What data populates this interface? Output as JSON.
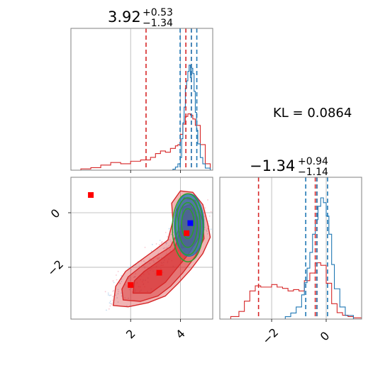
{
  "chart_data": {
    "type": "corner-plot",
    "kl_text": "KL = 0.0864",
    "colors": {
      "posterior_a": "#1f77b4",
      "posterior_b": "#d62728",
      "contour_c": "#2ca02c",
      "truth_marker": "#0000ff",
      "sample_marker": "#ff0000",
      "grid": "#b0b0b0",
      "frame": "#808080"
    },
    "params": [
      {
        "title_value": "3.92",
        "title_plus": "+0.53",
        "title_minus": "−1.34",
        "range": [
          -0.4,
          5.3
        ],
        "ticks": [
          {
            "value": 2,
            "label": "2"
          },
          {
            "value": 4,
            "label": "4"
          }
        ],
        "blue_quantiles": [
          3.99,
          4.44,
          4.66
        ],
        "red_quantiles": [
          2.62,
          4.44,
          4.22
        ],
        "blue_hist": {
          "x": [
            3.6,
            3.7,
            3.8,
            3.9,
            4.0,
            4.05,
            4.1,
            4.15,
            4.2,
            4.25,
            4.3,
            4.35,
            4.4,
            4.45,
            4.5,
            4.55,
            4.6,
            4.65,
            4.7,
            4.8,
            4.9,
            5.0,
            5.2
          ],
          "y": [
            0,
            0.01,
            0.03,
            0.06,
            0.12,
            0.3,
            0.45,
            0.6,
            0.78,
            0.85,
            0.94,
            1.0,
            0.88,
            0.97,
            0.92,
            0.75,
            0.55,
            0.38,
            0.25,
            0.12,
            0.06,
            0.02,
            0
          ]
        },
        "red_hist": {
          "x": [
            -0.4,
            0.0,
            0.4,
            0.8,
            1.2,
            1.6,
            2.0,
            2.4,
            2.8,
            3.0,
            3.2,
            3.4,
            3.6,
            3.8,
            3.9,
            4.0,
            4.1,
            4.2,
            4.3,
            4.4,
            4.5,
            4.6,
            4.8,
            5.0,
            5.2
          ],
          "y": [
            0,
            0.01,
            0.02,
            0.04,
            0.06,
            0.05,
            0.07,
            0.08,
            0.1,
            0.13,
            0.15,
            0.14,
            0.17,
            0.19,
            0.2,
            0.28,
            0.36,
            0.42,
            0.44,
            0.43,
            0.4,
            0.35,
            0.2,
            0.05,
            0
          ]
        }
      },
      {
        "title_value": "−1.34",
        "title_plus": "+0.94",
        "title_minus": "−1.14",
        "range": [
          -3.9,
          1.3
        ],
        "ticks": [
          {
            "value": -2,
            "label": "−2"
          },
          {
            "value": 0,
            "label": "0"
          }
        ],
        "blue_quantiles": [
          -0.75,
          -0.34,
          0.05
        ],
        "red_quantiles": [
          -2.48,
          -0.34,
          -0.4
        ],
        "blue_hist": {
          "x": [
            -1.8,
            -1.5,
            -1.3,
            -1.1,
            -0.9,
            -0.8,
            -0.7,
            -0.6,
            -0.5,
            -0.4,
            -0.3,
            -0.2,
            -0.1,
            0.0,
            0.1,
            0.2,
            0.3,
            0.5,
            0.7,
            1.0
          ],
          "y": [
            0,
            0.02,
            0.05,
            0.1,
            0.2,
            0.3,
            0.42,
            0.55,
            0.7,
            0.82,
            0.93,
            1.0,
            0.96,
            0.85,
            0.7,
            0.45,
            0.25,
            0.1,
            0.03,
            0
          ]
        },
        "red_hist": {
          "x": [
            -3.9,
            -3.5,
            -3.2,
            -3.0,
            -2.8,
            -2.6,
            -2.4,
            -2.2,
            -2.0,
            -1.8,
            -1.6,
            -1.4,
            -1.2,
            -1.0,
            -0.8,
            -0.6,
            -0.4,
            -0.2,
            0.0,
            0.2,
            0.4,
            0.6,
            0.8,
            1.0,
            1.3
          ],
          "y": [
            0,
            0.02,
            0.06,
            0.14,
            0.22,
            0.26,
            0.25,
            0.25,
            0.27,
            0.25,
            0.24,
            0.22,
            0.23,
            0.22,
            0.3,
            0.36,
            0.44,
            0.42,
            0.28,
            0.12,
            0.05,
            0.03,
            0.02,
            0.01,
            0
          ]
        }
      }
    ],
    "joint": {
      "x_param": 0,
      "y_param": 1,
      "red_markers": [
        [
          0.4,
          0.65
        ],
        [
          2.0,
          -2.65
        ],
        [
          3.15,
          -2.2
        ],
        [
          4.25,
          -0.75
        ]
      ],
      "blue_marker": [
        4.4,
        -0.38
      ],
      "red_regions": [
        {
          "level": 1,
          "points": [
            [
              1.3,
              -3.4
            ],
            [
              1.9,
              -3.45
            ],
            [
              2.7,
              -3.3
            ],
            [
              3.4,
              -3.05
            ],
            [
              3.9,
              -2.6
            ],
            [
              4.4,
              -2.1
            ],
            [
              4.9,
              -1.5
            ],
            [
              5.2,
              -0.9
            ],
            [
              5.1,
              -0.4
            ],
            [
              4.9,
              0.3
            ],
            [
              4.5,
              0.75
            ],
            [
              4.0,
              0.8
            ],
            [
              3.65,
              0.35
            ],
            [
              3.7,
              -0.3
            ],
            [
              3.5,
              -1.0
            ],
            [
              3.0,
              -1.35
            ],
            [
              2.4,
              -1.75
            ],
            [
              1.8,
              -2.15
            ],
            [
              1.4,
              -2.7
            ]
          ]
        },
        {
          "level": 2,
          "points": [
            [
              1.7,
              -3.2
            ],
            [
              2.4,
              -3.25
            ],
            [
              3.1,
              -3.05
            ],
            [
              3.6,
              -2.7
            ],
            [
              4.1,
              -2.2
            ],
            [
              4.6,
              -1.6
            ],
            [
              4.95,
              -0.95
            ],
            [
              4.9,
              -0.3
            ],
            [
              4.6,
              0.45
            ],
            [
              4.15,
              0.55
            ],
            [
              3.85,
              0.1
            ],
            [
              3.95,
              -0.6
            ],
            [
              3.6,
              -1.25
            ],
            [
              3.0,
              -1.6
            ],
            [
              2.45,
              -1.95
            ],
            [
              1.9,
              -2.35
            ],
            [
              1.65,
              -2.8
            ]
          ]
        },
        {
          "level": 3,
          "points": [
            [
              2.1,
              -2.95
            ],
            [
              2.8,
              -2.95
            ],
            [
              3.4,
              -2.55
            ],
            [
              3.8,
              -2.1
            ],
            [
              4.3,
              -1.55
            ],
            [
              4.75,
              -0.9
            ],
            [
              4.7,
              -0.2
            ],
            [
              4.4,
              0.3
            ],
            [
              4.1,
              0.2
            ],
            [
              4.05,
              -0.5
            ],
            [
              3.75,
              -1.35
            ],
            [
              3.1,
              -1.8
            ],
            [
              2.55,
              -2.15
            ],
            [
              2.15,
              -2.5
            ]
          ]
        },
        {
          "level": 4,
          "points": [
            [
              4.05,
              -1.3
            ],
            [
              4.55,
              -1.2
            ],
            [
              4.7,
              -0.5
            ],
            [
              4.55,
              0.15
            ],
            [
              4.2,
              0.15
            ],
            [
              4.0,
              -0.55
            ]
          ]
        }
      ],
      "green_contours": [
        {
          "cx": 4.3,
          "cy": -0.55,
          "rx": 0.62,
          "ry": 1.25
        },
        {
          "cx": 4.3,
          "cy": -0.5,
          "rx": 0.5,
          "ry": 1.05
        },
        {
          "cx": 4.3,
          "cy": -0.45,
          "rx": 0.38,
          "ry": 0.82
        },
        {
          "cx": 4.3,
          "cy": -0.4,
          "rx": 0.25,
          "ry": 0.55
        }
      ]
    }
  }
}
